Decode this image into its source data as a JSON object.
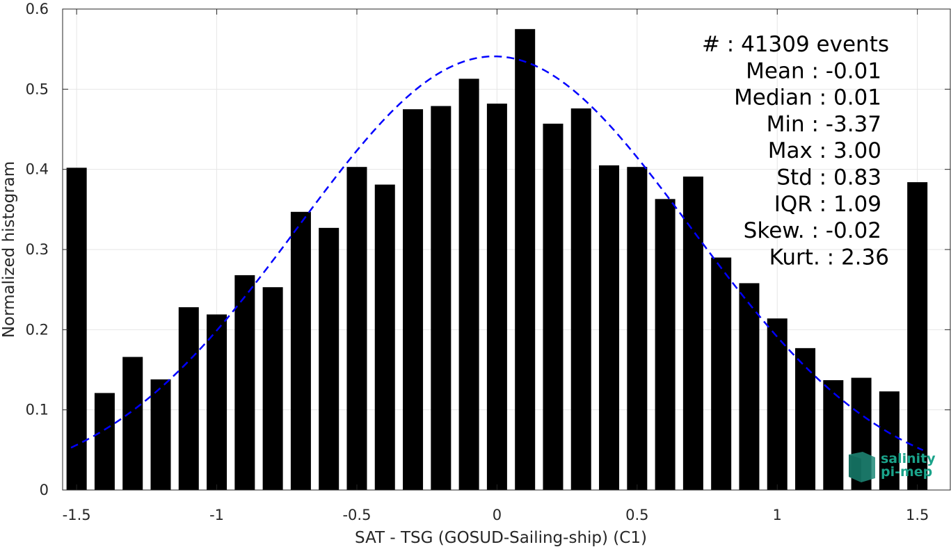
{
  "chart_data": {
    "type": "bar",
    "xlabel": "SAT - TSG (GOSUD-Sailing-ship) (C1)",
    "ylabel": "Normalized histogram",
    "xlim": [
      -1.55,
      1.62
    ],
    "ylim": [
      0,
      0.6
    ],
    "grid": true,
    "x_ticks": [
      -1.5,
      -1,
      -0.5,
      0,
      0.5,
      1,
      1.5
    ],
    "x_tick_labels": [
      "-1.5",
      "-1",
      "-0.5",
      "0",
      "0.5",
      "1",
      "1.5"
    ],
    "y_ticks": [
      0,
      0.1,
      0.2,
      0.3,
      0.4,
      0.5,
      0.6
    ],
    "y_tick_labels": [
      "0",
      "0.1",
      "0.2",
      "0.3",
      "0.4",
      "0.5",
      "0.6"
    ],
    "bin_centers": [
      -1.5,
      -1.4,
      -1.3,
      -1.2,
      -1.1,
      -1.0,
      -0.9,
      -0.8,
      -0.7,
      -0.6,
      -0.5,
      -0.4,
      -0.3,
      -0.2,
      -0.1,
      0.0,
      0.1,
      0.2,
      0.3,
      0.4,
      0.5,
      0.6,
      0.7,
      0.8,
      0.9,
      1.0,
      1.1,
      1.2,
      1.3,
      1.4,
      1.5
    ],
    "values": [
      0.402,
      0.121,
      0.166,
      0.138,
      0.228,
      0.219,
      0.268,
      0.253,
      0.347,
      0.327,
      0.403,
      0.381,
      0.475,
      0.479,
      0.513,
      0.482,
      0.575,
      0.457,
      0.476,
      0.405,
      0.403,
      0.363,
      0.391,
      0.29,
      0.258,
      0.214,
      0.177,
      0.137,
      0.14,
      0.123,
      0.384
    ],
    "bar_color": "#000000",
    "fit_curve": {
      "type": "gaussian",
      "style": "dashed",
      "color": "#0000ff",
      "mean": -0.01,
      "peak": 0.541,
      "std": 0.7,
      "x_range": [
        -1.52,
        1.52
      ]
    },
    "stats": [
      "#  : 41309 events",
      "Mean : -0.01",
      "Median : 0.01",
      "Min : -3.37",
      "Max : 3.00",
      "Std : 0.83",
      "IQR : 1.09",
      "Skew. : -0.02",
      "Kurt. : 2.36"
    ]
  },
  "logo": {
    "line1": "salinity",
    "line2": "pi-mep",
    "color": "#1aa38a"
  }
}
